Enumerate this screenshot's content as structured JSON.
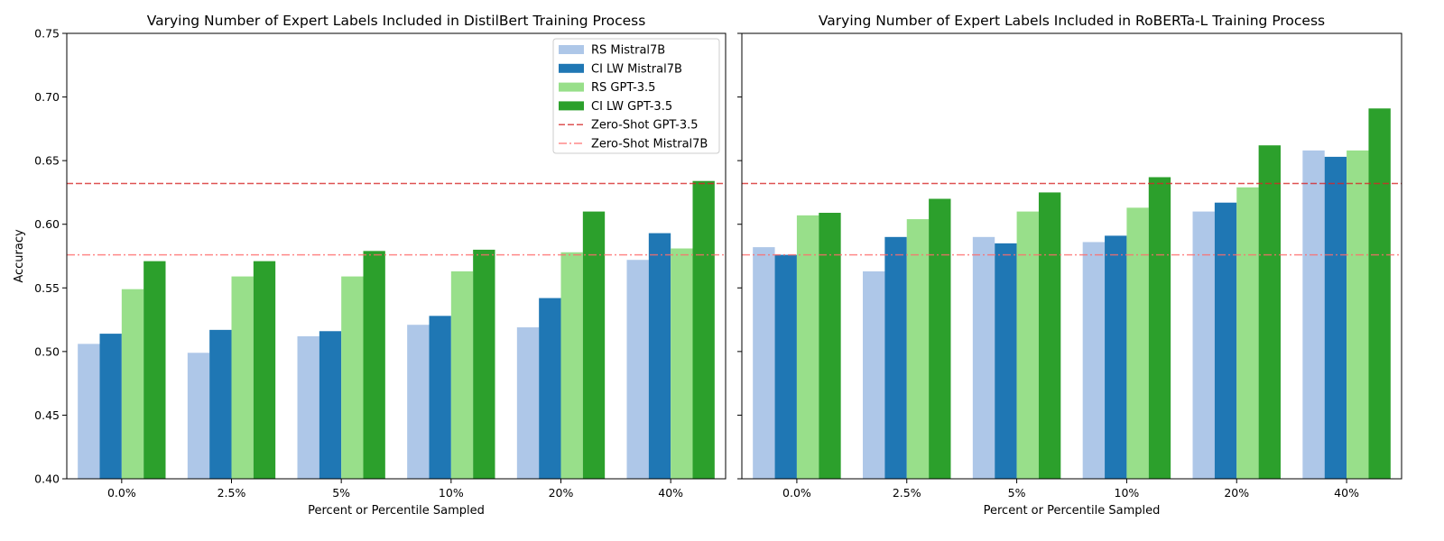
{
  "chart_data": [
    {
      "type": "bar",
      "title": "Varying Number of Expert Labels Included in DistilBert Training Process",
      "xlabel": "Percent or Percentile Sampled",
      "ylabel": "Accuracy",
      "ylim": [
        0.4,
        0.75
      ],
      "yticks": [
        "0.40",
        "0.45",
        "0.50",
        "0.55",
        "0.60",
        "0.65",
        "0.70",
        "0.75"
      ],
      "categories": [
        "0.0%",
        "2.5%",
        "5%",
        "10%",
        "20%",
        "40%"
      ],
      "series": [
        {
          "name": "RS Mistral7B",
          "color": "#aec7e8",
          "values": [
            0.506,
            0.499,
            0.512,
            0.521,
            0.519,
            0.572
          ]
        },
        {
          "name": "CI LW Mistral7B",
          "color": "#1f77b4",
          "values": [
            0.514,
            0.517,
            0.516,
            0.528,
            0.542,
            0.593
          ]
        },
        {
          "name": "RS GPT-3.5",
          "color": "#98df8a",
          "values": [
            0.549,
            0.559,
            0.559,
            0.563,
            0.578,
            0.581
          ]
        },
        {
          "name": "CI LW GPT-3.5",
          "color": "#2ca02c",
          "values": [
            0.571,
            0.571,
            0.579,
            0.58,
            0.61,
            0.634
          ]
        }
      ],
      "reference_lines": [
        {
          "name": "Zero-Shot GPT-3.5",
          "value": 0.632,
          "color": "#d62728",
          "style": "dashed"
        },
        {
          "name": "Zero-Shot Mistral7B",
          "value": 0.576,
          "color": "#ff6b6b",
          "style": "dashdot"
        }
      ],
      "legend": "top-right",
      "show_ylabels": true
    },
    {
      "type": "bar",
      "title": "Varying Number of Expert Labels Included in RoBERTa-L Training Process",
      "xlabel": "Percent or Percentile Sampled",
      "ylabel": "",
      "ylim": [
        0.4,
        0.75
      ],
      "yticks": [
        "0.40",
        "0.45",
        "0.50",
        "0.55",
        "0.60",
        "0.65",
        "0.70",
        "0.75"
      ],
      "categories": [
        "0.0%",
        "2.5%",
        "5%",
        "10%",
        "20%",
        "40%"
      ],
      "series": [
        {
          "name": "RS Mistral7B",
          "color": "#aec7e8",
          "values": [
            0.582,
            0.563,
            0.59,
            0.586,
            0.61,
            0.658
          ]
        },
        {
          "name": "CI LW Mistral7B",
          "color": "#1f77b4",
          "values": [
            0.576,
            0.59,
            0.585,
            0.591,
            0.617,
            0.653
          ]
        },
        {
          "name": "RS GPT-3.5",
          "color": "#98df8a",
          "values": [
            0.607,
            0.604,
            0.61,
            0.613,
            0.629,
            0.658
          ]
        },
        {
          "name": "CI LW GPT-3.5",
          "color": "#2ca02c",
          "values": [
            0.609,
            0.62,
            0.625,
            0.637,
            0.662,
            0.691
          ]
        }
      ],
      "reference_lines": [
        {
          "name": "Zero-Shot GPT-3.5",
          "value": 0.632,
          "color": "#d62728",
          "style": "dashed"
        },
        {
          "name": "Zero-Shot Mistral7B",
          "value": 0.576,
          "color": "#ff6b6b",
          "style": "dashdot"
        }
      ],
      "legend": "none",
      "show_ylabels": false
    }
  ]
}
